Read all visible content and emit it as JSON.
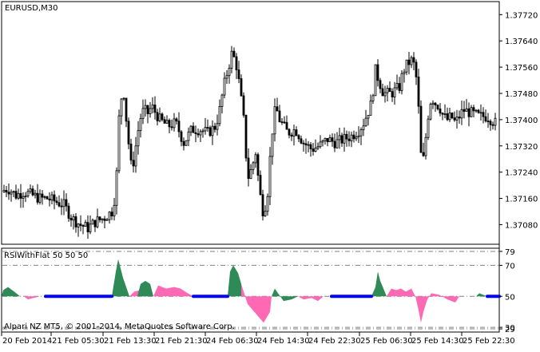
{
  "window": {
    "symbol_label": "EURUSD,M30",
    "indicator_label": "RSIWithFlat 50 50 50",
    "copyright": "Alpari NZ MT5, © 2001-2014, MetaQuotes Software Corp."
  },
  "colors": {
    "candle": "#000000",
    "bull_fill": "#ffffff",
    "up_fill": "#2e8b57",
    "down_fill": "#ff69b4",
    "flat_line": "#0000ff",
    "level_line": "#808080",
    "frame": "#000000"
  },
  "chart_data": [
    {
      "type": "candlestick",
      "title": "EURUSD,M30",
      "ylim": [
        1.3703,
        1.3775
      ],
      "y_ticks": [
        "1.37720",
        "1.37640",
        "1.37560",
        "1.37480",
        "1.37400",
        "1.37320",
        "1.37240",
        "1.37160",
        "1.37080"
      ],
      "y_tick_values": [
        1.3772,
        1.3764,
        1.3756,
        1.3748,
        1.374,
        1.3732,
        1.3724,
        1.3716,
        1.3708
      ],
      "x_ticks": [
        "20 Feb 2014",
        "21 Feb 05:30",
        "21 Feb 13:30",
        "21 Feb 21:30",
        "24 Feb 06:30",
        "24 Feb 14:30",
        "24 Feb 22:30",
        "25 Feb 06:30",
        "25 Feb 14:30",
        "25 Feb 22:30"
      ],
      "close_path": [
        [
          0,
          1.3718
        ],
        [
          10,
          1.3719
        ],
        [
          20,
          1.3717
        ],
        [
          30,
          1.3718
        ],
        [
          40,
          1.3717
        ],
        [
          50,
          1.3716
        ],
        [
          60,
          1.3716
        ],
        [
          70,
          1.3715
        ],
        [
          80,
          1.3714
        ],
        [
          90,
          1.371
        ],
        [
          100,
          1.3708
        ],
        [
          110,
          1.3707
        ],
        [
          120,
          1.3709
        ],
        [
          130,
          1.371
        ],
        [
          140,
          1.3712
        ],
        [
          145,
          1.3718
        ],
        [
          150,
          1.3746
        ],
        [
          155,
          1.3748
        ],
        [
          160,
          1.3735
        ],
        [
          165,
          1.3724
        ],
        [
          170,
          1.3732
        ],
        [
          175,
          1.374
        ],
        [
          180,
          1.3743
        ],
        [
          185,
          1.3742
        ],
        [
          190,
          1.3744
        ],
        [
          200,
          1.374
        ],
        [
          210,
          1.3738
        ],
        [
          220,
          1.3739
        ],
        [
          230,
          1.3733
        ],
        [
          240,
          1.3737
        ],
        [
          250,
          1.3737
        ],
        [
          260,
          1.3736
        ],
        [
          270,
          1.3738
        ],
        [
          275,
          1.3743
        ],
        [
          280,
          1.375
        ],
        [
          285,
          1.3755
        ],
        [
          290,
          1.376
        ],
        [
          295,
          1.3758
        ],
        [
          300,
          1.375
        ],
        [
          305,
          1.374
        ],
        [
          310,
          1.3722
        ],
        [
          315,
          1.3725
        ],
        [
          320,
          1.373
        ],
        [
          325,
          1.3718
        ],
        [
          330,
          1.3711
        ],
        [
          335,
          1.3718
        ],
        [
          340,
          1.3735
        ],
        [
          345,
          1.3744
        ],
        [
          350,
          1.374
        ],
        [
          360,
          1.3736
        ],
        [
          370,
          1.3737
        ],
        [
          380,
          1.3733
        ],
        [
          390,
          1.3731
        ],
        [
          400,
          1.3732
        ],
        [
          410,
          1.3734
        ],
        [
          420,
          1.3733
        ],
        [
          430,
          1.3734
        ],
        [
          440,
          1.3735
        ],
        [
          450,
          1.3737
        ],
        [
          455,
          1.3739
        ],
        [
          460,
          1.3742
        ],
        [
          465,
          1.3745
        ],
        [
          470,
          1.3755
        ],
        [
          480,
          1.3748
        ],
        [
          490,
          1.3748
        ],
        [
          500,
          1.375
        ],
        [
          505,
          1.3755
        ],
        [
          510,
          1.3757
        ],
        [
          515,
          1.3758
        ],
        [
          520,
          1.3756
        ],
        [
          525,
          1.374
        ],
        [
          528,
          1.3724
        ],
        [
          532,
          1.3732
        ],
        [
          535,
          1.374
        ],
        [
          540,
          1.3747
        ],
        [
          545,
          1.3745
        ],
        [
          550,
          1.3744
        ],
        [
          555,
          1.3741
        ],
        [
          560,
          1.374
        ],
        [
          565,
          1.3741
        ],
        [
          570,
          1.3739
        ],
        [
          575,
          1.3741
        ],
        [
          580,
          1.3743
        ],
        [
          590,
          1.3742
        ],
        [
          600,
          1.3741
        ],
        [
          610,
          1.3741
        ],
        [
          620,
          1.3739
        ]
      ]
    },
    {
      "type": "area",
      "title": "RSIWithFlat 50 50 50",
      "ylim": [
        28,
        80
      ],
      "levels": [
        79,
        70,
        50,
        30,
        29
      ],
      "level_labels": [
        "79",
        "70",
        "50",
        "30",
        "29"
      ],
      "series": [
        {
          "name": "Up",
          "points": [
            [
              2,
              50
            ],
            [
              4,
              54
            ],
            [
              10,
              56
            ],
            [
              18,
              53
            ],
            [
              25,
              50
            ]
          ]
        },
        {
          "name": "Down",
          "points": [
            [
              30,
              50
            ],
            [
              35,
              48
            ],
            [
              42,
              49
            ],
            [
              50,
              50
            ]
          ]
        },
        {
          "name": "Up",
          "points": [
            [
              140,
              50
            ],
            [
              145,
              66
            ],
            [
              148,
              74
            ],
            [
              154,
              62
            ],
            [
              158,
              56
            ],
            [
              162,
              50
            ]
          ]
        },
        {
          "name": "Down",
          "points": [
            [
              162,
              50
            ],
            [
              168,
              53
            ],
            [
              175,
              54
            ],
            [
              180,
              53
            ],
            [
              185,
              50
            ]
          ]
        },
        {
          "name": "Up",
          "points": [
            [
              172,
              50
            ],
            [
              176,
              58
            ],
            [
              182,
              60
            ],
            [
              188,
              58
            ],
            [
              192,
              50
            ]
          ]
        },
        {
          "name": "Down",
          "points": [
            [
              192,
              50
            ],
            [
              198,
              57
            ],
            [
              208,
              55
            ],
            [
              218,
              56
            ],
            [
              226,
              55
            ],
            [
              235,
              52
            ],
            [
              242,
              50
            ]
          ]
        },
        {
          "name": "Up",
          "points": [
            [
              285,
              50
            ],
            [
              288,
              66
            ],
            [
              292,
              70
            ],
            [
              298,
              65
            ],
            [
              302,
              58
            ]
          ]
        },
        {
          "name": "Down",
          "points": [
            [
              302,
              58
            ],
            [
              310,
              45
            ],
            [
              320,
              39
            ],
            [
              330,
              33
            ],
            [
              338,
              40
            ],
            [
              340,
              50
            ]
          ]
        },
        {
          "name": "Up",
          "points": [
            [
              340,
              50
            ],
            [
              344,
              55
            ],
            [
              348,
              52
            ],
            [
              355,
              47
            ],
            [
              365,
              48
            ],
            [
              373,
              50
            ]
          ]
        },
        {
          "name": "Down",
          "points": [
            [
              373,
              50
            ],
            [
              380,
              48
            ],
            [
              390,
              49
            ],
            [
              398,
              47
            ],
            [
              405,
              50
            ]
          ]
        },
        {
          "name": "Up",
          "points": [
            [
              465,
              50
            ],
            [
              470,
              56
            ],
            [
              473,
              66
            ],
            [
              476,
              60
            ],
            [
              480,
              55
            ],
            [
              484,
              50
            ]
          ]
        },
        {
          "name": "Down",
          "points": [
            [
              484,
              50
            ],
            [
              490,
              55
            ],
            [
              496,
              54
            ],
            [
              502,
              55
            ],
            [
              508,
              53
            ],
            [
              515,
              55
            ],
            [
              520,
              50
            ]
          ]
        },
        {
          "name": "Down",
          "points": [
            [
              520,
              50
            ],
            [
              524,
              41
            ],
            [
              527,
              33
            ],
            [
              530,
              40
            ],
            [
              535,
              48
            ],
            [
              540,
              52
            ],
            [
              550,
              51
            ],
            [
              560,
              48
            ],
            [
              570,
              46
            ],
            [
              575,
              50
            ]
          ]
        },
        {
          "name": "Up",
          "points": [
            [
              596,
              50
            ],
            [
              600,
              52
            ],
            [
              605,
              51
            ],
            [
              610,
              50
            ]
          ]
        }
      ],
      "flat_segments": [
        [
          57,
          140
        ],
        [
          242,
          285
        ],
        [
          415,
          465
        ],
        [
          610,
          625
        ]
      ]
    }
  ]
}
